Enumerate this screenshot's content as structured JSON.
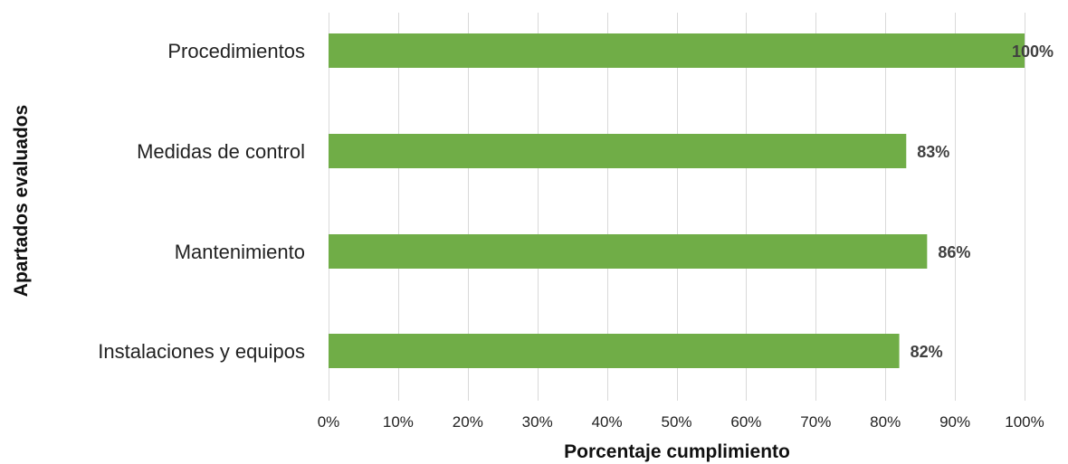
{
  "chart_data": {
    "type": "bar",
    "orientation": "horizontal",
    "categories": [
      "Procedimientos",
      "Medidas de control",
      "Mantenimiento",
      "Instalaciones y equipos"
    ],
    "values": [
      100,
      83,
      86,
      82
    ],
    "data_labels": [
      "100%",
      "83%",
      "86%",
      "82%"
    ],
    "xlabel": "Porcentaje cumplimiento",
    "ylabel": "Apartados evaluados",
    "xlim": [
      0,
      100
    ],
    "x_ticks": [
      0,
      10,
      20,
      30,
      40,
      50,
      60,
      70,
      80,
      90,
      100
    ],
    "x_tick_labels": [
      "0%",
      "10%",
      "20%",
      "30%",
      "40%",
      "50%",
      "60%",
      "70%",
      "80%",
      "90%",
      "100%"
    ],
    "grid": "vertical",
    "legend": "none",
    "colors": {
      "bar": "#70ad47",
      "gridline": "#d9d9d9",
      "data_label": "#404040"
    }
  }
}
